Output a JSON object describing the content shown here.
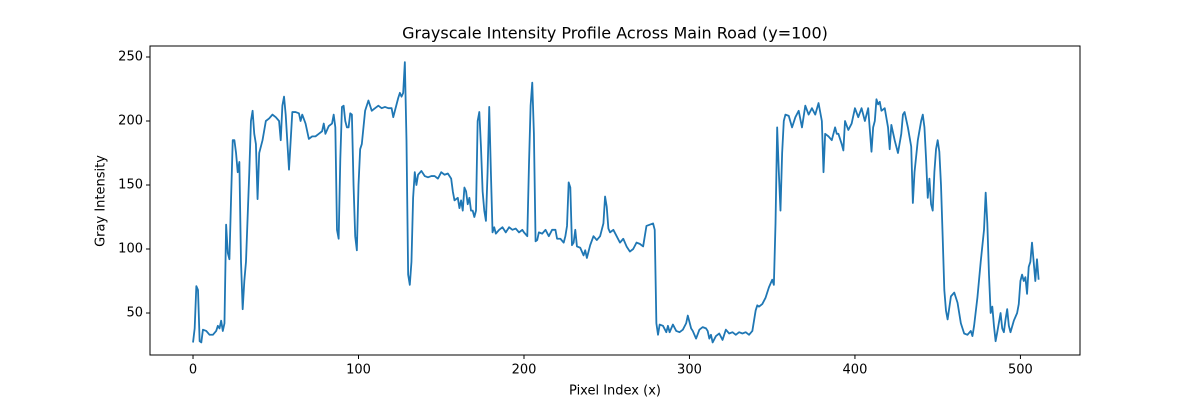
{
  "chart_data": {
    "type": "line",
    "title": "Grayscale Intensity Profile Across Main Road (y=100)",
    "x_label": "Pixel Index (x)",
    "y_label": "Gray Intensity",
    "color": "#1f77b4",
    "xlim": [
      -26,
      536
    ],
    "ylim": [
      17.2,
      258.6
    ],
    "xticks": [
      0,
      100,
      200,
      300,
      400,
      500
    ],
    "yticks": [
      50,
      100,
      150,
      200,
      250
    ],
    "x": [
      0,
      1,
      2,
      3,
      4,
      5,
      6,
      8,
      10,
      12,
      14,
      15,
      16,
      17,
      18,
      19,
      20,
      21,
      22,
      23,
      24,
      25,
      26,
      27,
      28,
      29,
      30,
      31,
      32,
      34,
      35,
      36,
      37,
      38,
      39,
      40,
      42,
      44,
      46,
      48,
      50,
      52,
      53,
      54,
      55,
      56,
      58,
      60,
      62,
      64,
      65,
      66,
      68,
      70,
      72,
      74,
      76,
      78,
      79,
      80,
      82,
      84,
      85,
      86,
      87,
      88,
      89,
      90,
      91,
      92,
      93,
      94,
      95,
      96,
      97,
      98,
      99,
      100,
      101,
      102,
      104,
      106,
      108,
      110,
      112,
      114,
      116,
      118,
      120,
      121,
      122,
      124,
      125,
      126,
      127,
      128,
      129,
      130,
      131,
      132,
      133,
      134,
      135,
      136,
      138,
      140,
      142,
      144,
      146,
      148,
      150,
      152,
      154,
      156,
      157,
      158,
      160,
      161,
      162,
      163,
      164,
      165,
      166,
      167,
      168,
      169,
      170,
      171,
      172,
      173,
      174,
      175,
      176,
      177,
      178,
      179,
      180,
      181,
      182,
      183,
      185,
      187,
      189,
      191,
      193,
      195,
      197,
      199,
      200,
      202,
      203,
      204,
      205,
      206,
      207,
      208,
      209,
      211,
      213,
      215,
      217,
      219,
      220,
      222,
      224,
      225,
      226,
      227,
      228,
      229,
      230,
      231,
      232,
      234,
      236,
      237,
      238,
      240,
      242,
      244,
      246,
      248,
      249,
      250,
      251,
      252,
      254,
      256,
      258,
      260,
      262,
      264,
      266,
      268,
      270,
      272,
      274,
      276,
      278,
      279,
      280,
      281,
      282,
      284,
      286,
      287,
      288,
      290,
      292,
      294,
      296,
      298,
      299,
      300,
      301,
      302,
      304,
      306,
      308,
      310,
      311,
      312,
      313,
      314,
      316,
      318,
      320,
      322,
      324,
      326,
      328,
      330,
      332,
      334,
      336,
      338,
      340,
      341,
      342,
      344,
      346,
      348,
      350,
      351,
      352,
      353,
      354,
      355,
      356,
      357,
      358,
      360,
      362,
      364,
      366,
      368,
      370,
      372,
      374,
      376,
      378,
      380,
      381,
      382,
      384,
      386,
      388,
      389,
      390,
      392,
      393,
      394,
      396,
      398,
      400,
      402,
      404,
      406,
      408,
      409,
      410,
      411,
      412,
      413,
      414,
      415,
      416,
      418,
      420,
      421,
      422,
      424,
      426,
      428,
      429,
      430,
      432,
      434,
      435,
      436,
      438,
      440,
      441,
      442,
      443,
      444,
      445,
      446,
      447,
      448,
      449,
      450,
      451,
      452,
      453,
      454,
      455,
      456,
      458,
      460,
      462,
      464,
      466,
      468,
      470,
      471,
      472,
      474,
      476,
      478,
      479,
      480,
      481,
      482,
      483,
      484,
      485,
      486,
      488,
      489,
      490,
      491,
      492,
      493,
      494,
      496,
      498,
      499,
      500,
      501,
      502,
      503,
      504,
      505,
      506,
      507,
      508,
      509,
      510,
      511
    ],
    "values": [
      27,
      38,
      71,
      68,
      28,
      27,
      37,
      36,
      33,
      33,
      36,
      40,
      38,
      44,
      36,
      42,
      119,
      97,
      92,
      140,
      185,
      185,
      175,
      160,
      168,
      90,
      53,
      75,
      90,
      160,
      200,
      208,
      190,
      182,
      139,
      175,
      185,
      200,
      202,
      205,
      203,
      200,
      185,
      212,
      219,
      205,
      162,
      207,
      207,
      206,
      200,
      205,
      198,
      186,
      188,
      188,
      190,
      192,
      198,
      190,
      196,
      198,
      205,
      195,
      115,
      108,
      170,
      211,
      212,
      200,
      195,
      195,
      206,
      205,
      150,
      110,
      99,
      150,
      178,
      182,
      208,
      216,
      208,
      210,
      212,
      210,
      211,
      210,
      210,
      203,
      208,
      218,
      222,
      219,
      222,
      246,
      185,
      80,
      72,
      90,
      140,
      160,
      150,
      158,
      161,
      157,
      156,
      157,
      157,
      155,
      160,
      158,
      159,
      155,
      145,
      138,
      140,
      132,
      138,
      130,
      148,
      145,
      135,
      140,
      130,
      130,
      125,
      130,
      200,
      207,
      180,
      145,
      130,
      122,
      160,
      211,
      160,
      113,
      117,
      112,
      115,
      117,
      113,
      117,
      115,
      116,
      113,
      115,
      113,
      110,
      165,
      212,
      230,
      190,
      106,
      107,
      113,
      112,
      115,
      110,
      115,
      115,
      108,
      108,
      105,
      110,
      118,
      152,
      148,
      103,
      105,
      115,
      102,
      101,
      95,
      99,
      93,
      103,
      110,
      107,
      110,
      120,
      141,
      133,
      116,
      113,
      115,
      110,
      105,
      108,
      102,
      98,
      100,
      105,
      104,
      102,
      118,
      119,
      120,
      115,
      42,
      33,
      41,
      40,
      35,
      40,
      35,
      41,
      36,
      35,
      37,
      42,
      48,
      43,
      38,
      36,
      30,
      37,
      39,
      38,
      36,
      30,
      33,
      27,
      32,
      34,
      29,
      37,
      34,
      35,
      33,
      35,
      34,
      35,
      33,
      36,
      52,
      56,
      55,
      57,
      62,
      70,
      76,
      72,
      120,
      195,
      160,
      130,
      175,
      200,
      205,
      204,
      195,
      203,
      208,
      195,
      212,
      205,
      210,
      205,
      214,
      200,
      160,
      190,
      188,
      185,
      195,
      190,
      190,
      182,
      177,
      200,
      193,
      198,
      210,
      203,
      210,
      200,
      210,
      193,
      176,
      195,
      200,
      217,
      213,
      215,
      208,
      210,
      195,
      178,
      197,
      185,
      175,
      190,
      205,
      207,
      195,
      180,
      136,
      160,
      185,
      200,
      205,
      195,
      170,
      140,
      155,
      135,
      130,
      160,
      178,
      185,
      176,
      150,
      110,
      68,
      52,
      45,
      63,
      66,
      58,
      42,
      34,
      33,
      36,
      32,
      40,
      62,
      90,
      115,
      144,
      120,
      80,
      50,
      55,
      40,
      28,
      35,
      50,
      38,
      35,
      45,
      53,
      40,
      35,
      44,
      50,
      57,
      75,
      80,
      75,
      78,
      65,
      86,
      90,
      105,
      90,
      75,
      92,
      76
    ]
  }
}
